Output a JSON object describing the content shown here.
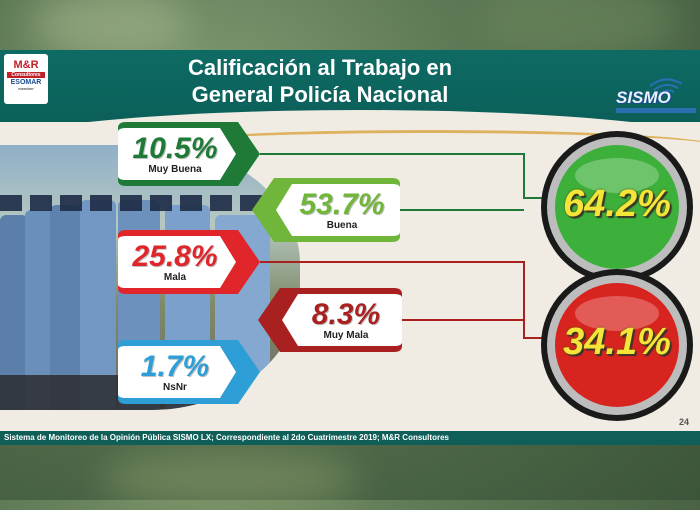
{
  "slide": {
    "title_line1": "Calificación al Trabajo en",
    "title_line2": "General Policía Nacional",
    "footer": "Sistema de Monitoreo de la Opinión Pública SISMO LX; Correspondiente al 2do Cuatrimestre 2019; M&R Consultores",
    "page_number": "24",
    "logo_left": {
      "line1": "M&R",
      "line2": "Consultores",
      "line3": "ESOMAR",
      "line4": "member"
    },
    "logo_right": {
      "text": "SISMO"
    }
  },
  "colors": {
    "muy_buena": "#1e7a36",
    "buena": "#6fb63a",
    "mala": "#e0262b",
    "muy_mala": "#a8201f",
    "nsnr": "#2e9fd6",
    "header": "#0e6b64",
    "positive_circle": "#3cb03a",
    "negative_circle": "#d8241f"
  },
  "chart_data": {
    "type": "table",
    "categories": [
      "Muy Buena",
      "Buena",
      "Mala",
      "Muy Mala",
      "NsNr"
    ],
    "values": [
      10.5,
      53.7,
      25.8,
      8.3,
      1.7
    ],
    "value_labels": [
      "10.5%",
      "53.7%",
      "25.8%",
      "8.3%",
      "1.7%"
    ],
    "groups": [
      {
        "members": [
          "Muy Buena",
          "Buena"
        ],
        "total": 64.2,
        "total_label": "64.2%"
      },
      {
        "members": [
          "Mala",
          "Muy Mala"
        ],
        "total": 34.1,
        "total_label": "34.1%"
      }
    ]
  }
}
